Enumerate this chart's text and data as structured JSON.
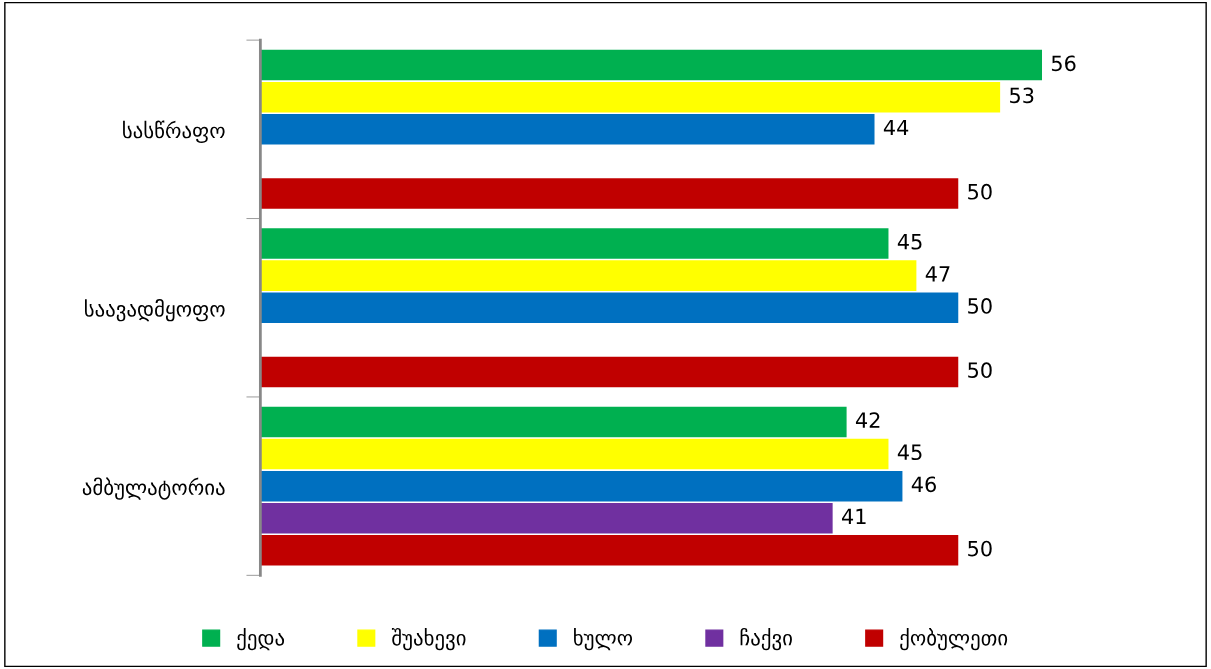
{
  "chart_data": {
    "type": "bar",
    "orientation": "horizontal",
    "categories": [
      "სასწრაფო",
      "საავადმყოფო",
      "ამბულატორია"
    ],
    "series": [
      {
        "name": "ქედა",
        "color": "#00b050",
        "values": [
          56,
          45,
          42
        ]
      },
      {
        "name": "შუახევი",
        "color": "#ffff00",
        "values": [
          53,
          47,
          45
        ]
      },
      {
        "name": "ხულო",
        "color": "#0070c0",
        "values": [
          44,
          50,
          46
        ]
      },
      {
        "name": "ჩაქვი",
        "color": "#7030a0",
        "values": [
          null,
          null,
          41
        ]
      },
      {
        "name": "ქობულეთი",
        "color": "#c00000",
        "values": [
          50,
          50,
          50
        ]
      }
    ],
    "data_labels": true,
    "legend": "bottom",
    "grid": false
  }
}
